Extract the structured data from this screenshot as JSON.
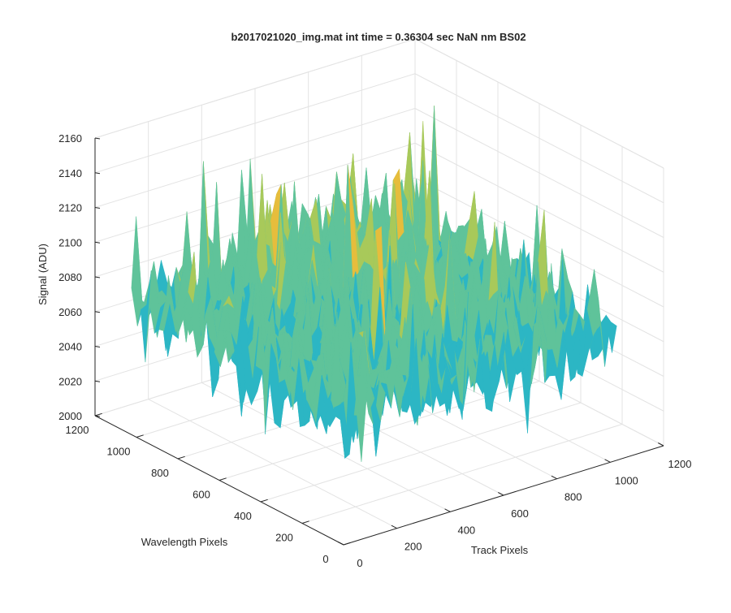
{
  "figure": {
    "title": "b2017021020_img.mat int time = 0.36304 sec  NaN nm BS02"
  },
  "chart_data": {
    "type": "surface",
    "title": "b2017021020_img.mat int time = 0.36304 sec  NaN nm BS02",
    "xlabel": "Track Pixels",
    "ylabel": "Wavelength Pixels",
    "zlabel": "Signal (ADU)",
    "xlim": [
      0,
      1200
    ],
    "ylim": [
      0,
      1200
    ],
    "zlim": [
      2000,
      2160
    ],
    "x_ticks": [
      0,
      200,
      400,
      600,
      800,
      1000,
      1200
    ],
    "y_ticks": [
      0,
      200,
      400,
      600,
      800,
      1000,
      1200
    ],
    "z_ticks": [
      2000,
      2020,
      2040,
      2060,
      2080,
      2100,
      2120,
      2140,
      2160
    ],
    "x_tick_labels": [
      "0",
      "200",
      "400",
      "600",
      "800",
      "1000",
      "1200"
    ],
    "y_tick_labels": [
      "0",
      "200",
      "400",
      "600",
      "800",
      "1000",
      "1200"
    ],
    "z_tick_labels": [
      "2000",
      "2020",
      "2040",
      "2060",
      "2080",
      "2100",
      "2120",
      "2140",
      "2160"
    ],
    "grid": true,
    "data_extent": {
      "x": [
        0,
        1024
      ],
      "y": [
        0,
        1024
      ]
    },
    "signal_range_estimate": [
      2020,
      2150
    ],
    "signal_mean_estimate": 2075,
    "colormap": [
      "#0072bd",
      "#1a9cd8",
      "#2cb6c4",
      "#5fc39a",
      "#a8c95a",
      "#e6bd3c",
      "#f5d53a"
    ]
  }
}
